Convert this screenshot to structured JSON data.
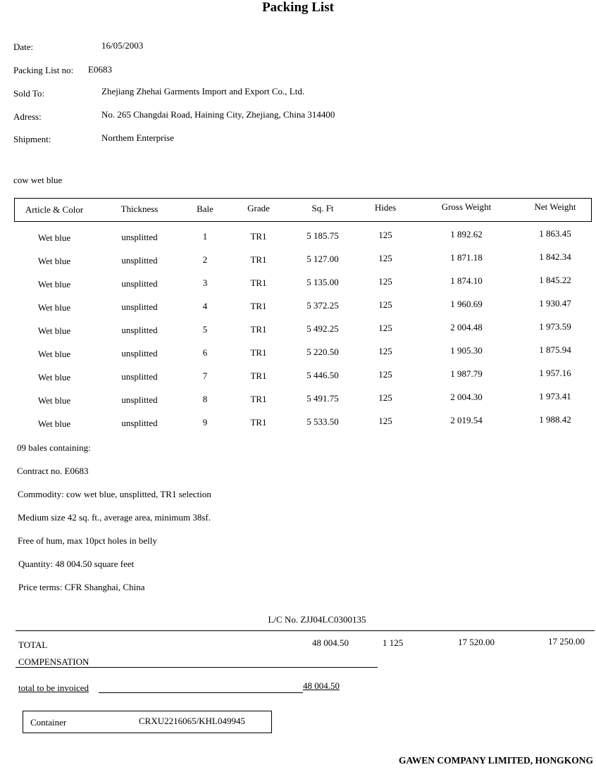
{
  "title": "Packing List",
  "header": {
    "date_label": "Date:",
    "date": "16/05/2003",
    "packing_list_label": "Packing List no:",
    "packing_list_no": "E0683",
    "sold_to_label": "Sold To:",
    "sold_to": "Zhejiang Zhehai Garments Import and Export Co., Ltd.",
    "address_label": "Adress:",
    "address": "No. 265 Changdai Road, Haining City, Zhejiang, China 314400",
    "shipment_label": "Shipment:",
    "shipment": "Northem Enterprise"
  },
  "product": "cow wet blue",
  "table": {
    "columns": [
      "Article & Color",
      "Thickness",
      "Bale",
      "Grade",
      "Sq. Ft",
      "Hides",
      "Gross Weight",
      "Net Weight"
    ],
    "rows": [
      [
        "Wet blue",
        "unsplitted",
        "1",
        "TR1",
        "5 185.75",
        "125",
        "1 892.62",
        "1 863.45"
      ],
      [
        "Wet blue",
        "unsplitted",
        "2",
        "TR1",
        "5 127.00",
        "125",
        "1 871.18",
        "1 842.34"
      ],
      [
        "Wet blue",
        "unsplitted",
        "3",
        "TR1",
        "5 135.00",
        "125",
        "1 874.10",
        "1 845.22"
      ],
      [
        "Wet blue",
        "unsplitted",
        "4",
        "TR1",
        "5 372.25",
        "125",
        "1 960.69",
        "1 930.47"
      ],
      [
        "Wet blue",
        "unsplitted",
        "5",
        "TR1",
        "5 492.25",
        "125",
        "2 004.48",
        "1 973.59"
      ],
      [
        "Wet blue",
        "unsplitted",
        "6",
        "TR1",
        "5 220.50",
        "125",
        "1 905.30",
        "1 875.94"
      ],
      [
        "Wet blue",
        "unsplitted",
        "7",
        "TR1",
        "5 446.50",
        "125",
        "1 987.79",
        "1 957.16"
      ],
      [
        "Wet blue",
        "unsplitted",
        "8",
        "TR1",
        "5 491.75",
        "125",
        "2 004.30",
        "1 973.41"
      ],
      [
        "Wet blue",
        "unsplitted",
        "9",
        "TR1",
        "5 533.50",
        "125",
        "2 019.54",
        "1 988.42"
      ]
    ]
  },
  "notes": [
    "09 bales containing:",
    "Contract no. E0683",
    "Commodity:  cow wet blue, unsplitted, TR1 selection",
    "Medium size 42 sq. ft., average area, minimum 38sf.",
    "Free of hum, max 10pct holes in belly",
    "Quantity:  48 004.50 square feet",
    "Price terms:  CFR Shanghai, China"
  ],
  "lc_no": "L/C No. ZJJ04LC0300135",
  "totals": {
    "total_label": "TOTAL",
    "sq_ft": "48 004.50",
    "hides": "1 125",
    "gross_weight": "17 520.00",
    "net_weight": "17 250.00",
    "compensation_label": "COMPENSATION",
    "invoiced_label": "total to be invoiced",
    "invoiced_value": "48 004.50"
  },
  "container": {
    "label": "Container",
    "value": "CRXU2216065/KHL049945"
  },
  "footer_company": "GAWEN COMPANY LIMITED, HONGKONG"
}
